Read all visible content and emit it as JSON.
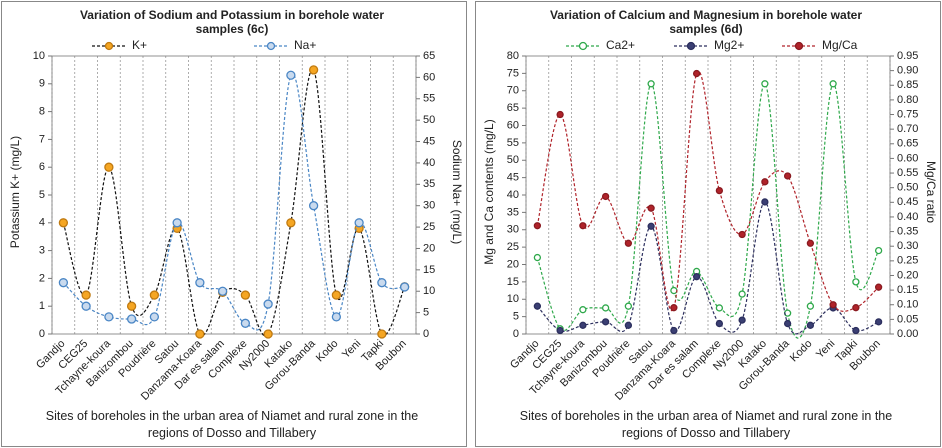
{
  "chart_data": [
    {
      "type": "line",
      "title": "Variation of Sodium and Potassium in borehole water samples (6c)",
      "x_label": "Sites of boreholes in the urban area of Niamet and rural zone in the regions of Dosso and Tillabery",
      "y_label": "Potassium K+ (mg/L)",
      "y2_label": "Sodium Na+ (mg/L)",
      "categories": [
        "Gandjo",
        "CEG25",
        "Tchayne-koura",
        "Banizombou",
        "Poudrière",
        "Satou",
        "Danzama-Koara",
        "Dar es salam",
        "Complexe",
        "Ny2000",
        "Katako",
        "Gorou-Banda",
        "Kodo",
        "Yeni",
        "Tapki",
        "Boubon"
      ],
      "series": [
        {
          "name": "K+",
          "color": "#111111",
          "marker_fill": "#f5a623",
          "marker_stroke": "#c07a10",
          "axis": "y",
          "values": [
            4,
            1.4,
            6,
            1,
            1.4,
            3.8,
            0,
            1.5,
            1.4,
            0,
            4,
            9.5,
            1.4,
            3.8,
            0,
            1.7
          ]
        },
        {
          "name": "Na+",
          "color": "#4a86c5",
          "marker_fill": "#c9daee",
          "marker_stroke": "#4a86c5",
          "axis": "y2",
          "values": [
            12,
            6.5,
            4,
            3.5,
            4,
            26,
            12,
            10,
            2.5,
            7,
            60.5,
            30,
            4,
            26,
            12,
            11
          ]
        }
      ],
      "ylim": [
        0,
        10
      ],
      "yticks": [
        0,
        1,
        2,
        3,
        4,
        5,
        6,
        7,
        8,
        9,
        10
      ],
      "y2lim": [
        0,
        65
      ],
      "y2ticks": [
        0,
        5,
        10,
        15,
        20,
        25,
        30,
        35,
        40,
        45,
        50,
        55,
        60,
        65
      ],
      "grid": "vertical"
    },
    {
      "type": "line",
      "title": "Variation of Calcium and Magnesium in borehole water samples (6d)",
      "x_label": "Sites of boreholes in the urban area of Niamet and rural zone in the regions of Dosso and Tillabery",
      "y_label": "Mg and Ca contents (mg/L)",
      "y2_label": "Mg/Ca ratio",
      "categories": [
        "Gandjo",
        "CEG25",
        "Tchayne-koura",
        "Banizombou",
        "Poudrière",
        "Satou",
        "Danzama-Koara",
        "Dar es salam",
        "Complexe",
        "Ny2000",
        "Katako",
        "Gorou-Banda",
        "Kodo",
        "Yeni",
        "Tapki",
        "Boubon"
      ],
      "series": [
        {
          "name": "Ca2+",
          "color": "#2ea84a",
          "marker_fill": "#ffffff",
          "marker_stroke": "#2ea84a",
          "axis": "y",
          "values": [
            22,
            1.5,
            7,
            7.5,
            8,
            72,
            12.5,
            18,
            7.5,
            11.5,
            72,
            6,
            8,
            72,
            15,
            24
          ]
        },
        {
          "name": "Mg2+",
          "color": "#2c2f5e",
          "marker_fill": "#3b3f73",
          "marker_stroke": "#2c2f5e",
          "axis": "y",
          "values": [
            8,
            1,
            2.5,
            3.5,
            2.5,
            31,
            1,
            16.5,
            3,
            4,
            38,
            3,
            2.5,
            7.5,
            1,
            3.5
          ]
        },
        {
          "name": "Mg/Ca",
          "color": "#b0232a",
          "marker_fill": "#b0232a",
          "marker_stroke": "#8a1a20",
          "axis": "y2",
          "values": [
            0.37,
            0.75,
            0.37,
            0.47,
            0.31,
            0.43,
            0.09,
            0.89,
            0.49,
            0.34,
            0.52,
            0.54,
            0.31,
            0.1,
            0.09,
            0.16
          ]
        }
      ],
      "ylim": [
        0,
        80
      ],
      "yticks": [
        0,
        5,
        10,
        15,
        20,
        25,
        30,
        35,
        40,
        45,
        50,
        55,
        60,
        65,
        70,
        75,
        80
      ],
      "y2lim": [
        0,
        0.95
      ],
      "y2ticks": [
        {
          "value": 0,
          "label": "0.00"
        },
        {
          "value": 0.05,
          "label": "0.05"
        },
        {
          "value": 0.1,
          "label": "0.10"
        },
        {
          "value": 0.15,
          "label": "0.15"
        },
        {
          "value": 0.2,
          "label": "0.20"
        },
        {
          "value": 0.25,
          "label": "0.25"
        },
        {
          "value": 0.3,
          "label": "0.30"
        },
        {
          "value": 0.35,
          "label": "0.35"
        },
        {
          "value": 0.4,
          "label": "0.40"
        },
        {
          "value": 0.45,
          "label": "0.45"
        },
        {
          "value": 0.5,
          "label": "0.50"
        },
        {
          "value": 0.55,
          "label": "0.55"
        },
        {
          "value": 0.6,
          "label": "0.60"
        },
        {
          "value": 0.65,
          "label": "0.65"
        },
        {
          "value": 0.7,
          "label": "0.70"
        },
        {
          "value": 0.75,
          "label": "0.75"
        },
        {
          "value": 0.8,
          "label": "0.80"
        },
        {
          "value": 0.85,
          "label": "0.85"
        },
        {
          "value": 0.9,
          "label": "0.90"
        },
        {
          "value": 0.95,
          "label": "0.95"
        }
      ],
      "grid": "vertical"
    }
  ]
}
